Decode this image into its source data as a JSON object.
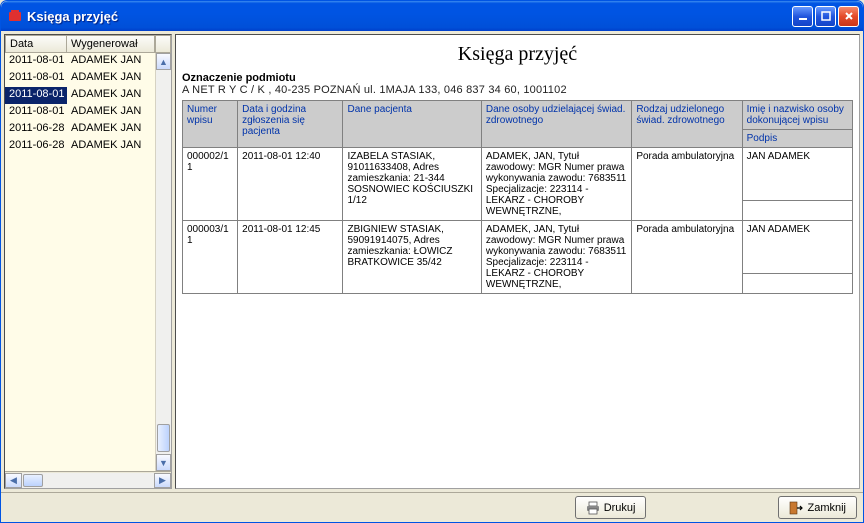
{
  "window": {
    "title": "Księga przyjęć"
  },
  "leftPanel": {
    "columns": {
      "date": "Data",
      "user": "Wygenerował"
    },
    "rows": [
      {
        "date": "2011-08-01",
        "user": "ADAMEK JAN",
        "selected": false
      },
      {
        "date": "2011-08-01",
        "user": "ADAMEK JAN",
        "selected": false
      },
      {
        "date": "2011-08-01",
        "user": "ADAMEK JAN",
        "selected": true
      },
      {
        "date": "2011-08-01",
        "user": "ADAMEK JAN",
        "selected": false
      },
      {
        "date": "2011-06-28",
        "user": "ADAMEK JAN",
        "selected": false
      },
      {
        "date": "2011-06-28",
        "user": "ADAMEK JAN",
        "selected": false
      }
    ]
  },
  "report": {
    "title": "Księga przyjęć",
    "subjectLabel": "Oznaczenie podmiotu",
    "subjectText": "A NET  R Y C  / K , 40-235 POZNAŃ ul. 1MAJA 133, 046 837 34 60, 1001102",
    "columns": {
      "c1": "Numer wpisu",
      "c2": "Data i godzina zgłoszenia się pacjenta",
      "c3": "Dane pacjenta",
      "c4": "Dane osoby udzielającej świad. zdrowotnego",
      "c5": "Rodzaj udzielonego świad. zdrowotnego",
      "c6a": "Imię i nazwisko osoby dokonującej wpisu",
      "c6b": "Podpis"
    },
    "rows": [
      {
        "nr": "000002/11",
        "dt": "2011-08-01 12:40",
        "patient": "IZABELA STASIAK, 91011633408, Adres zamieszkania: 21-344 SOSNOWIEC KOŚCIUSZKI 1/12",
        "provider": "ADAMEK, JAN, Tytuł zawodowy: MGR Numer prawa wykonywania zawodu: 7683511 Specjalizacje: 223114 - LEKARZ - CHOROBY WEWNĘTRZNE,",
        "service": "Porada ambulatoryjna",
        "author": "JAN ADAMEK",
        "sign": ""
      },
      {
        "nr": "000003/11",
        "dt": "2011-08-01 12:45",
        "patient": "ZBIGNIEW STASIAK, 59091914075, Adres zamieszkania: ŁOWICZ BRATKOWICE 35/42",
        "provider": "ADAMEK, JAN, Tytuł zawodowy: MGR Numer prawa wykonywania zawodu: 7683511 Specjalizacje: 223114 - LEKARZ - CHOROBY WEWNĘTRZNE,",
        "service": "Porada ambulatoryjna",
        "author": "JAN ADAMEK",
        "sign": ""
      }
    ]
  },
  "buttons": {
    "print": "Drukuj",
    "close": "Zamknij"
  }
}
